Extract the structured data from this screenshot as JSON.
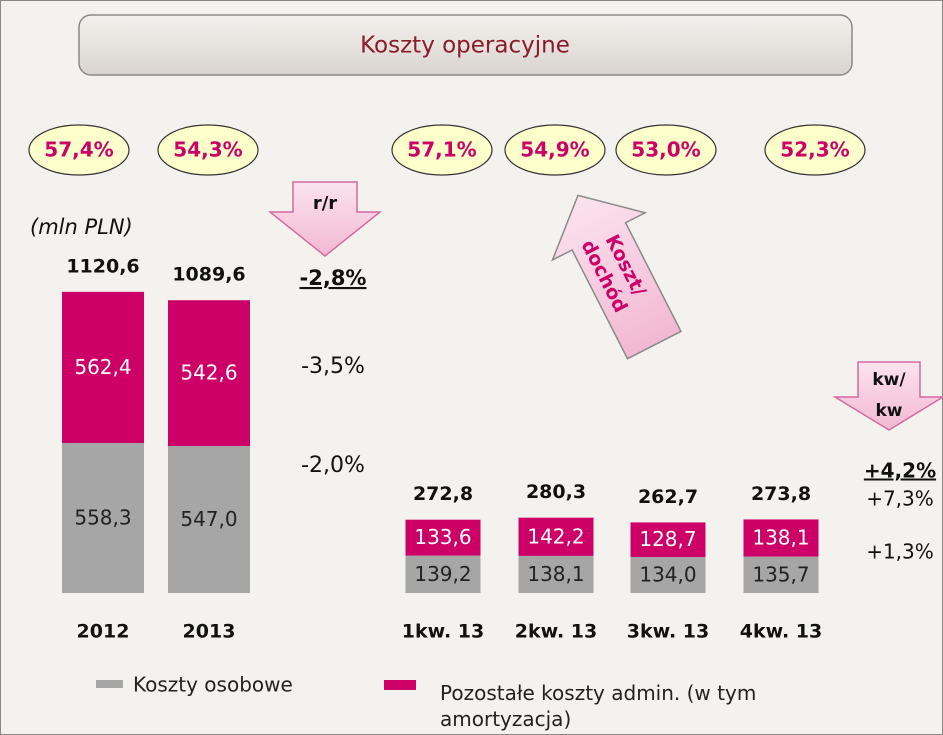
{
  "chart_data": {
    "type": "bar",
    "stacked": true,
    "title": "Koszty operacyjne",
    "unit_label": "(mln PLN)",
    "categories": [
      "2012",
      "2013",
      "1kw. 13",
      "2kw. 13",
      "3kw. 13",
      "4kw. 13"
    ],
    "series": [
      {
        "name": "Koszty osobowe",
        "color": "#a6a6a6",
        "values": [
          558.3,
          547.0,
          139.2,
          138.1,
          134.0,
          135.7
        ],
        "value_labels": [
          "558,3",
          "547,0",
          "139,2",
          "138,1",
          "134,0",
          "135,7"
        ]
      },
      {
        "name": "Pozostałe koszty admin. (w tym amortyzacja)",
        "color": "#cc0066",
        "values": [
          562.4,
          542.6,
          133.6,
          142.2,
          128.7,
          138.1
        ],
        "value_labels": [
          "562,4",
          "542,6",
          "133,6",
          "142,2",
          "128,7",
          "138,1"
        ]
      }
    ],
    "total_labels": [
      "1120,6",
      "1089,6",
      "272,8",
      "280,3",
      "262,7",
      "273,8"
    ],
    "cost_income_labels": [
      "57,4%",
      "54,3%",
      "57,1%",
      "54,9%",
      "53,0%",
      "52,3%"
    ],
    "annual_change": {
      "label": "r/r",
      "values": [
        "-2,8%",
        "-3,5%",
        "-2,0%"
      ]
    },
    "quarterly_change": {
      "label_lines": [
        "kw/",
        "kw"
      ],
      "values": [
        "+4,2%",
        "+7,3%",
        "+1,3%"
      ]
    },
    "cost_income_arrow": [
      "Koszt/",
      "dochód"
    ]
  }
}
